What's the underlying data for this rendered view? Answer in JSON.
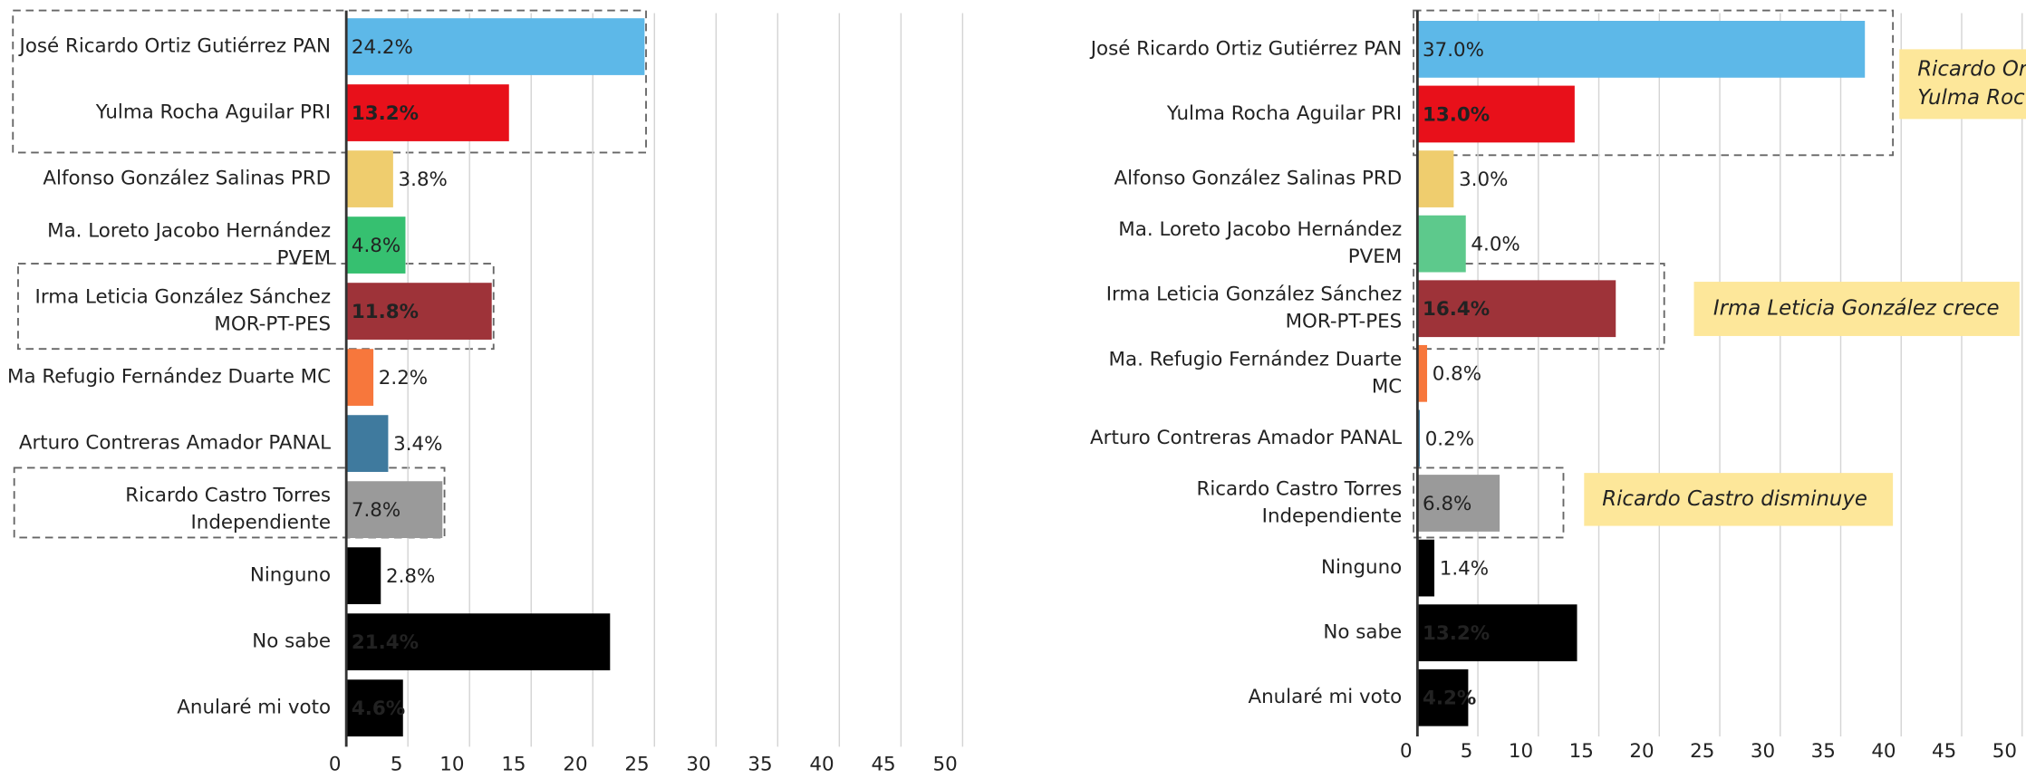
{
  "chart_data": [
    {
      "type": "bar",
      "orientation": "horizontal",
      "categories": [
        "José Ricardo Ortiz Gutiérrez PAN",
        "Yulma Rocha Aguilar PRI",
        "Alfonso González Salinas PRD",
        [
          "Ma. Loreto Jacobo Hernández",
          "PVEM"
        ],
        [
          "Irma Leticia González Sánchez",
          "MOR-PT-PES"
        ],
        "Ma Refugio Fernández Duarte MC",
        "Arturo Contreras Amador PANAL",
        [
          "Ricardo Castro Torres",
          "Independiente"
        ],
        "Ninguno",
        "No sabe",
        "Anularé mi voto"
      ],
      "values": [
        24.2,
        13.2,
        3.8,
        4.8,
        11.8,
        2.2,
        3.4,
        7.8,
        2.8,
        21.4,
        4.6
      ],
      "value_labels": [
        "24.2%",
        "13.2%",
        "3.8%",
        "4.8%",
        "11.8%",
        "2.2%",
        "3.4%",
        "7.8%",
        "2.8%",
        "21.4%",
        "4.6%"
      ],
      "colors": [
        "#5db8e8",
        "#e8101a",
        "#efcd6e",
        "#36c070",
        "#9e3339",
        "#f7773c",
        "#3f7a9e",
        "#9a9a9a",
        "#000000",
        "#000000",
        "#000000"
      ],
      "xlim": [
        0,
        50
      ],
      "xticks": [
        0,
        5,
        10,
        15,
        20,
        25,
        30,
        35,
        40,
        45,
        50
      ],
      "grid": true
    },
    {
      "type": "bar",
      "orientation": "horizontal",
      "categories": [
        "José Ricardo Ortiz Gutiérrez PAN",
        "Yulma Rocha Aguilar PRI",
        "Alfonso González Salinas PRD",
        [
          "Ma. Loreto Jacobo Hernández",
          "PVEM"
        ],
        [
          "Irma Leticia González Sánchez",
          "MOR-PT-PES"
        ],
        [
          "Ma. Refugio Fernández Duarte",
          "MC"
        ],
        "Arturo Contreras Amador PANAL",
        [
          "Ricardo Castro Torres",
          "Independiente"
        ],
        "Ninguno",
        "No sabe",
        "Anularé mi voto"
      ],
      "values": [
        37.0,
        13.0,
        3.0,
        4.0,
        16.4,
        0.8,
        0.2,
        6.8,
        1.4,
        13.2,
        4.2
      ],
      "value_labels": [
        "37.0%",
        "13.0%",
        "3.0%",
        "4.0%",
        "16.4%",
        "0.8%",
        "0.2%",
        "6.8%",
        "1.4%",
        "13.2%",
        "4.2%"
      ],
      "colors": [
        "#5db8e8",
        "#e8101a",
        "#efcd6e",
        "#5dc98c",
        "#9e3339",
        "#f7773c",
        "#3f7a9e",
        "#9a9a9a",
        "#000000",
        "#000000",
        "#000000"
      ],
      "xlim": [
        0,
        50
      ],
      "xticks": [
        0,
        5,
        10,
        15,
        20,
        25,
        30,
        35,
        40,
        45,
        50
      ],
      "grid": true,
      "annotations": [
        [
          "Ricardo Or",
          "Yulma Roc"
        ],
        [
          "Irma Leticia González crece"
        ],
        [
          "Ricardo Castro disminuye"
        ]
      ]
    }
  ]
}
